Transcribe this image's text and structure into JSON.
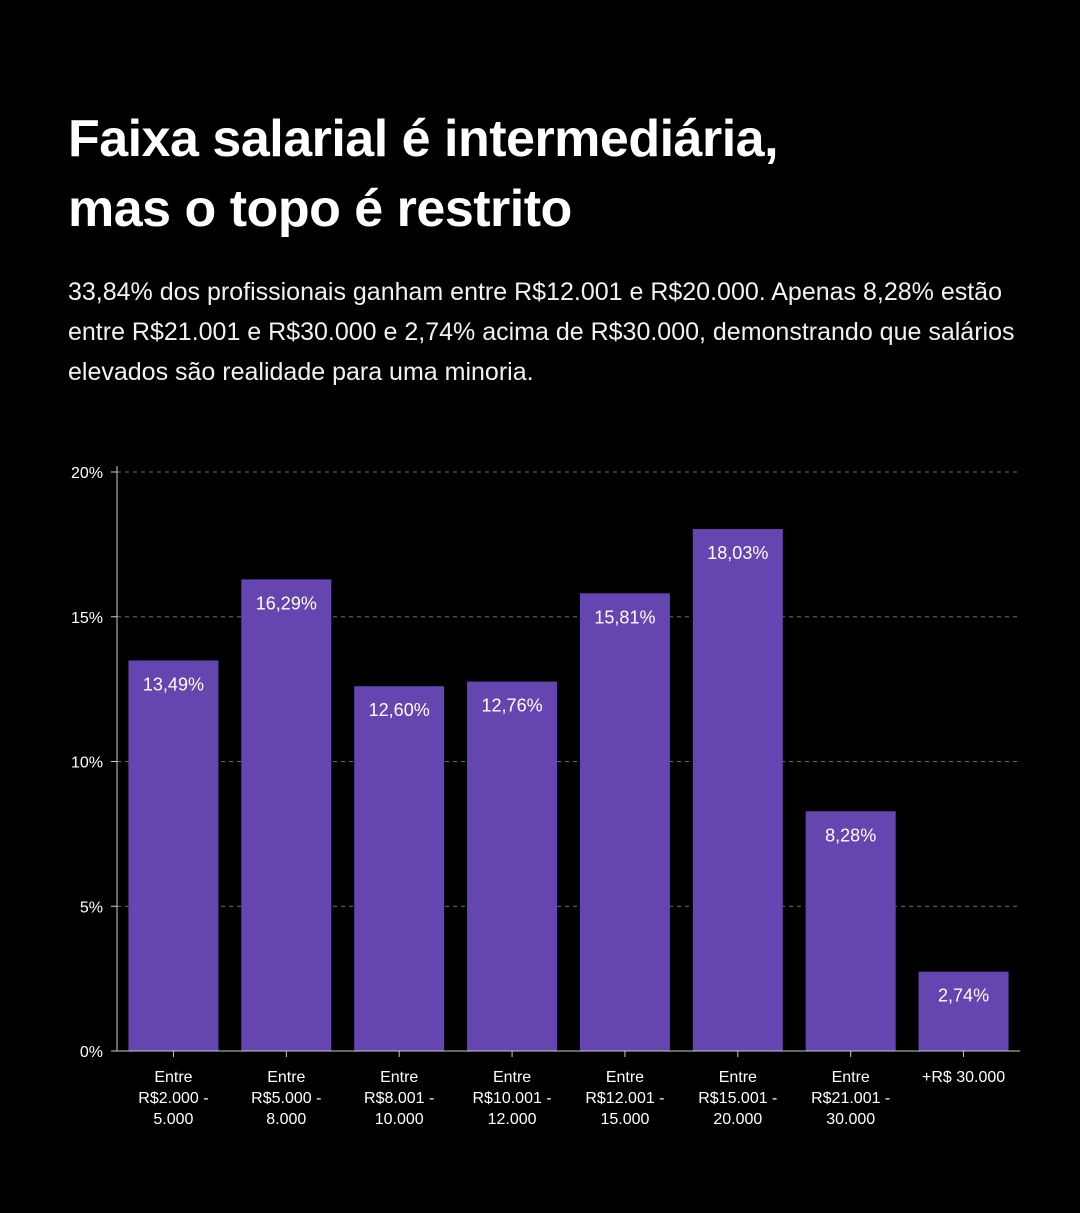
{
  "header": {
    "title_line1": "Faixa salarial é intermediária,",
    "title_line2": "mas o topo é restrito",
    "subtitle": "33,84% dos profissionais ganham entre R$12.001 e R$20.000. Apenas 8,28% estão entre R$21.001 e R$30.000 e 2,74% acima de R$30.000, demonstrando que salários elevados são realidade para uma minoria."
  },
  "chart_data": {
    "type": "bar",
    "title": "",
    "xlabel": "",
    "ylabel": "",
    "ylim": [
      0,
      20
    ],
    "yticks": [
      0,
      5,
      10,
      15,
      20
    ],
    "ytick_labels": [
      "0%",
      "5%",
      "10%",
      "15%",
      "20%"
    ],
    "grid": true,
    "bar_color": "#6545B0",
    "categories": [
      [
        "Entre",
        "R$2.000 -",
        "5.000"
      ],
      [
        "Entre",
        "R$5.000 -",
        "8.000"
      ],
      [
        "Entre",
        "R$8.001 -",
        "10.000"
      ],
      [
        "Entre",
        "R$10.001 -",
        "12.000"
      ],
      [
        "Entre",
        "R$12.001 -",
        "15.000"
      ],
      [
        "Entre",
        "R$15.001 -",
        "20.000"
      ],
      [
        "Entre",
        "R$21.001 -",
        "30.000"
      ],
      [
        "+R$ 30.000"
      ]
    ],
    "values": [
      13.49,
      16.29,
      12.6,
      12.76,
      15.81,
      18.03,
      8.28,
      2.74
    ],
    "value_labels": [
      "13,49%",
      "16,29%",
      "12,60%",
      "12,76%",
      "15,81%",
      "18,03%",
      "8,28%",
      "2,74%"
    ]
  }
}
